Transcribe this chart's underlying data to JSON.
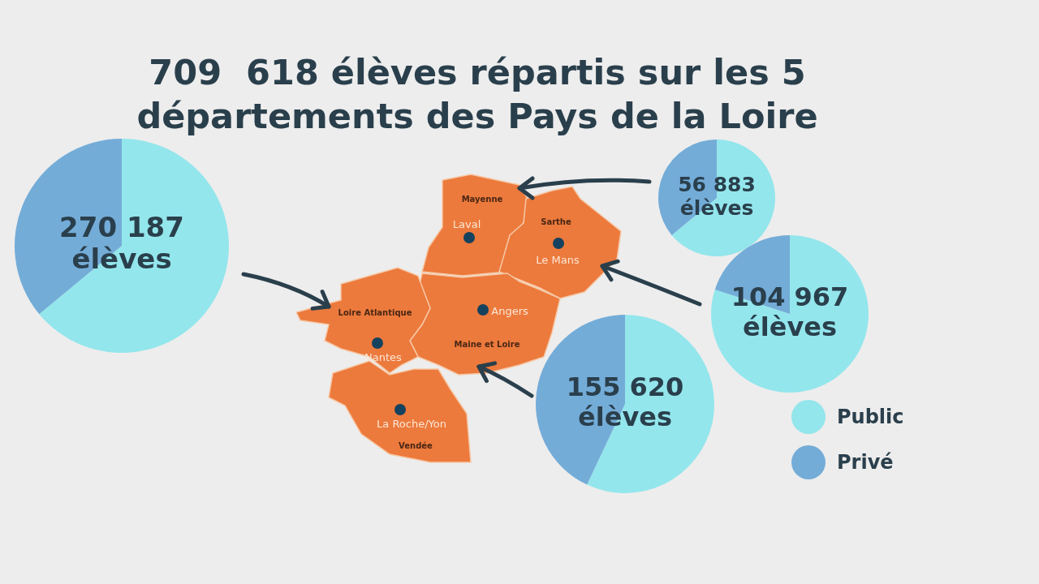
{
  "chart_data": [
    {
      "type": "other",
      "title": "709  618 élèves répartis sur les 5\ndépartements des Pays de la Loire",
      "annotations": [
        "Mayenne",
        "Laval",
        "Sarthe",
        "Le Mans",
        "Loire Atlantique",
        "Angers",
        "Maine et Loire",
        "Nantes",
        "La Roche/Yon",
        "Vendée"
      ]
    },
    {
      "type": "pie",
      "categories": [
        null,
        null
      ],
      "values": [
        64,
        36
      ],
      "colors": [
        "#93e6ec",
        "#74acd8"
      ],
      "annotations": [
        "270 187\nélèves"
      ]
    },
    {
      "type": "pie",
      "categories": [
        null,
        null
      ],
      "values": [
        64,
        36
      ],
      "colors": [
        "#93e6ec",
        "#74acd8"
      ],
      "annotations": [
        "56 883\nélèves"
      ]
    },
    {
      "type": "pie",
      "categories": [
        null,
        null
      ],
      "values": [
        80,
        20
      ],
      "colors": [
        "#93e6ec",
        "#74acd8"
      ],
      "annotations": [
        "104 967\nélèves"
      ]
    },
    {
      "type": "pie",
      "categories": [
        "Public",
        "Privé"
      ],
      "values": [
        57,
        43
      ],
      "colors": [
        "#93e6ec",
        "#74acd8"
      ],
      "annotations": [
        "155 620\nélèves"
      ],
      "legend": "right"
    }
  ]
}
